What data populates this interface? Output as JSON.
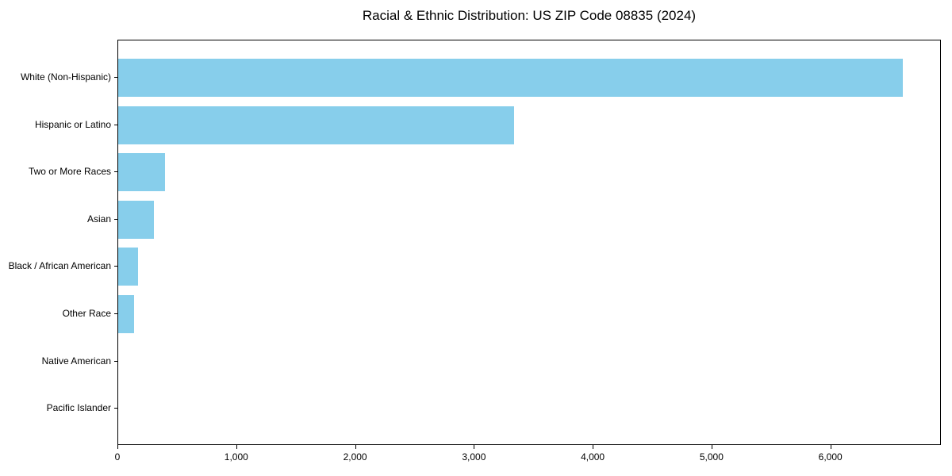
{
  "chart_data": {
    "type": "bar",
    "orientation": "horizontal",
    "title": "Racial & Ethnic Distribution: US ZIP Code 08835 (2024)",
    "categories": [
      "White (Non-Hispanic)",
      "Hispanic or Latino",
      "Two or More Races",
      "Asian",
      "Black / African American",
      "Other Race",
      "Native American",
      "Pacific Islander"
    ],
    "values": [
      6600,
      3330,
      395,
      300,
      165,
      135,
      0,
      0
    ],
    "xlabel": "",
    "ylabel": "",
    "xlim": [
      0,
      6930
    ],
    "x_ticks": [
      0,
      1000,
      2000,
      3000,
      4000,
      5000,
      6000
    ],
    "x_tick_labels": [
      "0",
      "1,000",
      "2,000",
      "3,000",
      "4,000",
      "5,000",
      "6,000"
    ],
    "bar_color": "#87CEEB",
    "background_color": "#ffffff",
    "spine_color": "#000000",
    "grid": false,
    "legend": null
  }
}
